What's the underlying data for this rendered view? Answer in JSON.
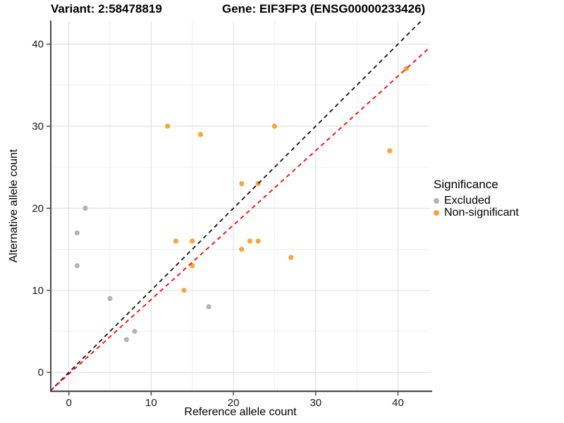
{
  "header": {
    "variant_title": "Variant: 2:58478819",
    "gene_title": "Gene: EIF3FP3 (ENSG00000233426)"
  },
  "chart_data": {
    "type": "scatter",
    "xlabel": "Reference allele count",
    "ylabel": "Alternative allele count",
    "xlim": [
      -2.2,
      43.9
    ],
    "ylim": [
      -2.3,
      42.8
    ],
    "x_ticks": [
      0,
      10,
      20,
      30,
      40
    ],
    "y_ticks": [
      0,
      10,
      20,
      30,
      40
    ],
    "x_minor_ticks": [
      5,
      15,
      25,
      35
    ],
    "y_minor_ticks": [
      5,
      15,
      25,
      35
    ],
    "grid": true,
    "series": [
      {
        "name": "Excluded",
        "color": "#B4B4B4",
        "points": [
          [
            1,
            13
          ],
          [
            1,
            17
          ],
          [
            2,
            20
          ],
          [
            5,
            9
          ],
          [
            7,
            4
          ],
          [
            8,
            5
          ],
          [
            17,
            8
          ]
        ]
      },
      {
        "name": "Non-significant",
        "color": "#FAA43A",
        "points": [
          [
            12,
            30
          ],
          [
            13,
            16
          ],
          [
            14,
            10
          ],
          [
            15,
            13
          ],
          [
            15,
            16
          ],
          [
            16,
            29
          ],
          [
            21,
            15
          ],
          [
            21,
            23
          ],
          [
            22,
            16
          ],
          [
            23,
            16
          ],
          [
            23,
            23
          ],
          [
            25,
            30
          ],
          [
            27,
            14
          ],
          [
            39,
            27
          ],
          [
            41,
            37
          ]
        ]
      }
    ],
    "lines": [
      {
        "name": "identity-line",
        "color": "#111111",
        "style": "dashed",
        "slope": 1,
        "intercept": 0
      },
      {
        "name": "fit-line",
        "color": "#FF0000",
        "style": "dashed",
        "slope": 0.907,
        "intercept": -0.19
      }
    ],
    "legend": {
      "title": "Significance",
      "position": "right",
      "items": [
        {
          "label": "Excluded",
          "color": "#B4B4B4"
        },
        {
          "label": "Non-significant",
          "color": "#FAA43A"
        }
      ]
    }
  }
}
